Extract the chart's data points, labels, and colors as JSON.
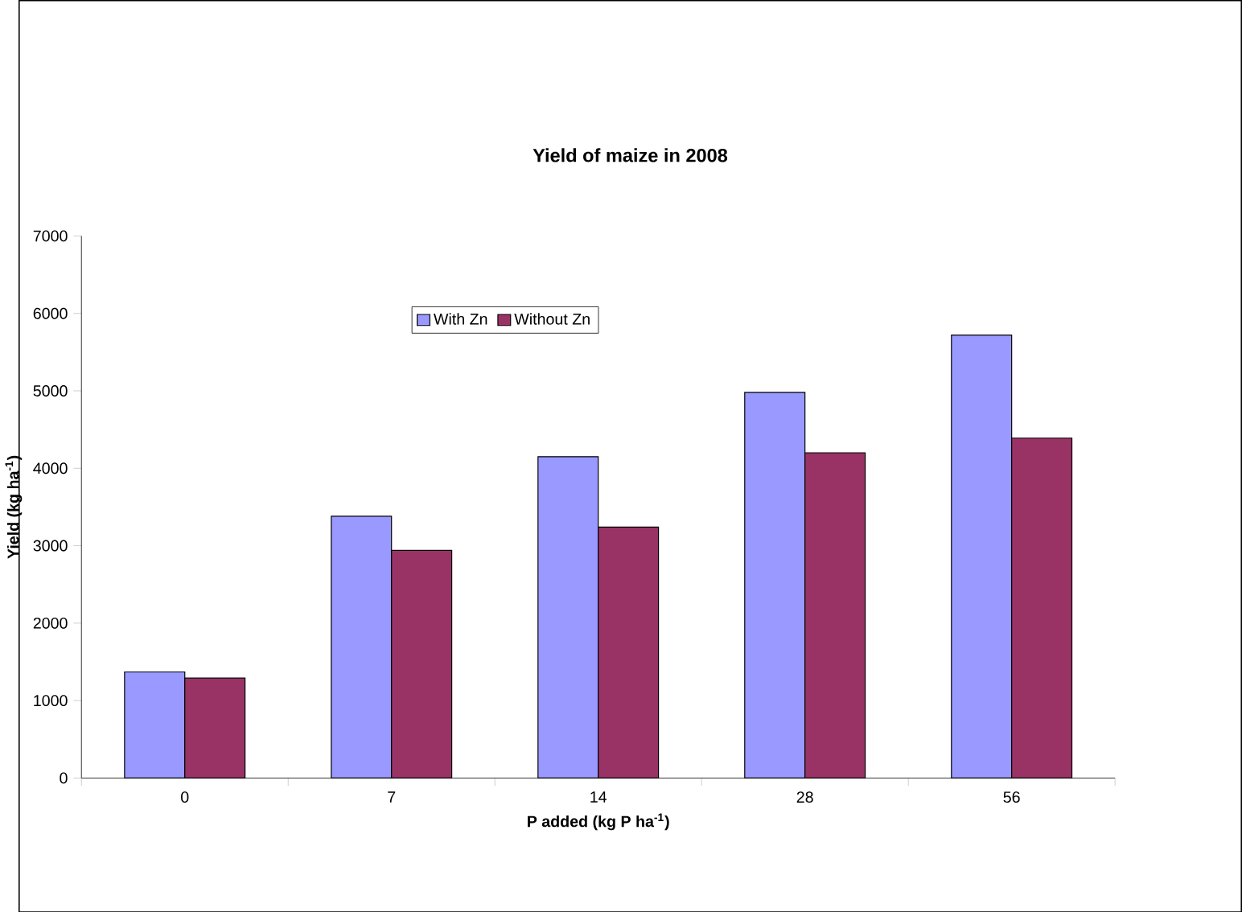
{
  "chart_data": {
    "type": "bar",
    "title": "Yield of maize in 2008",
    "xlabel": "P added (kg P ha$^{-1}$)",
    "ylabel": "Yield (kg ha$^{-1}$)",
    "categories": [
      "0",
      "7",
      "14",
      "28",
      "56"
    ],
    "series": [
      {
        "name": "With Zn",
        "color": "#9999ff",
        "values": [
          1370,
          3380,
          4150,
          4980,
          5720
        ]
      },
      {
        "name": "Without Zn",
        "color": "#993366",
        "values": [
          1290,
          2940,
          3240,
          4200,
          4390
        ]
      }
    ],
    "ylim": [
      0,
      7000
    ],
    "yticks": [
      0,
      1000,
      2000,
      3000,
      4000,
      5000,
      6000,
      7000
    ],
    "grid": false,
    "legend": "top"
  }
}
